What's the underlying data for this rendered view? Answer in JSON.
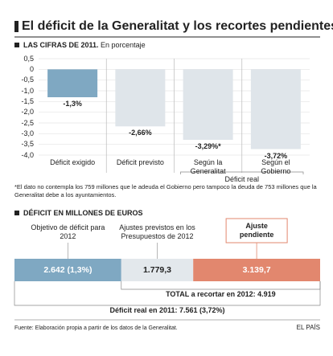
{
  "title": "El déficit de la Generalitat y los recortes pendientes",
  "chart_data": [
    {
      "type": "bar",
      "title": "LAS CIFRAS DE 2011.",
      "subtitle": "En porcentaje",
      "categories": [
        "Déficit exigido",
        "Déficit previsto",
        "Según la Generalitat",
        "Según el Gobierno"
      ],
      "values": [
        -1.3,
        -2.66,
        -3.29,
        -3.72
      ],
      "value_labels": [
        "-1,3%",
        "-2,66%",
        "-3,29%*",
        "-3,72%"
      ],
      "colors": [
        "#7fa8c2",
        "#dfe5ea",
        "#dfe5ea",
        "#dfe5ea"
      ],
      "ylim": [
        -4.0,
        0.5
      ],
      "yticks": [
        {
          "value": 0.5,
          "label": "0,5"
        },
        0,
        {
          "value": -0.5,
          "label": "-0,5"
        },
        {
          "value": -1.0,
          "label": "-1,0"
        },
        {
          "value": -1.5,
          "label": "-1,5"
        },
        {
          "value": -2.0,
          "label": "-2,0"
        },
        {
          "value": -2.5,
          "label": "-2,5"
        },
        {
          "value": -3.0,
          "label": "-3,0"
        },
        {
          "value": -3.5,
          "label": "-3,5"
        },
        {
          "value": -4.0,
          "label": "-4,0"
        }
      ],
      "grid": true,
      "group_label": "Déficit real",
      "note": "*El dato no contempla los 759 millones que le adeuda el Gobierno pero tampoco la deuda de 753 millones que la Generalitat debe a los ayuntamientos."
    },
    {
      "type": "stacked-hbar",
      "title": "DÉFICIT EN MILLONES DE EUROS",
      "categories": [
        "Objetivo de déficit para 2012",
        "Ajustes previstos en los Presupuestos de 2012",
        "Ajuste pendiente"
      ],
      "values": [
        2642,
        1779.3,
        3139.7
      ],
      "value_labels": [
        "2.642 (1,3%)",
        "1.779,3",
        "3.139,7"
      ],
      "colors": [
        "#7fa8c2",
        "#e3e8ec",
        "#e2876e"
      ],
      "total_label": "TOTAL a recortar en 2012: 4.919",
      "real_label": "Déficit real en 2011: 7.561 (3,72%)"
    }
  ],
  "source": "Fuente: Elaboración propia a partir de los datos de la Generalitat.",
  "brand": "EL PAÍS"
}
